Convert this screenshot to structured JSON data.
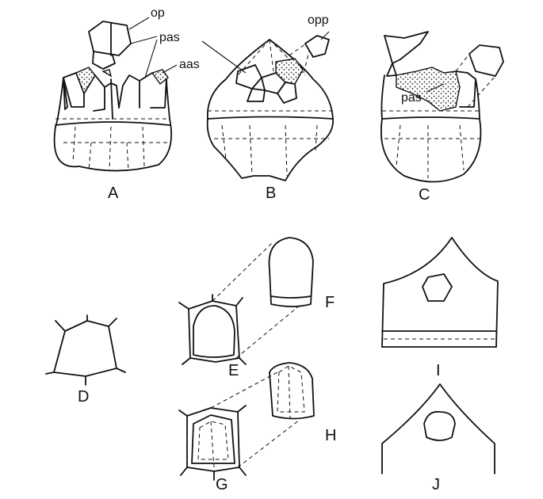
{
  "figure": {
    "panel_labels": {
      "a": "A",
      "b": "B",
      "c": "C",
      "d": "D",
      "e": "E",
      "f": "F",
      "g": "G",
      "h": "H",
      "i": "I",
      "j": "J"
    },
    "abbreviations": {
      "op": "op",
      "pas": "pas",
      "aas": "aas",
      "opp": "opp",
      "pas_c": "pas"
    }
  }
}
